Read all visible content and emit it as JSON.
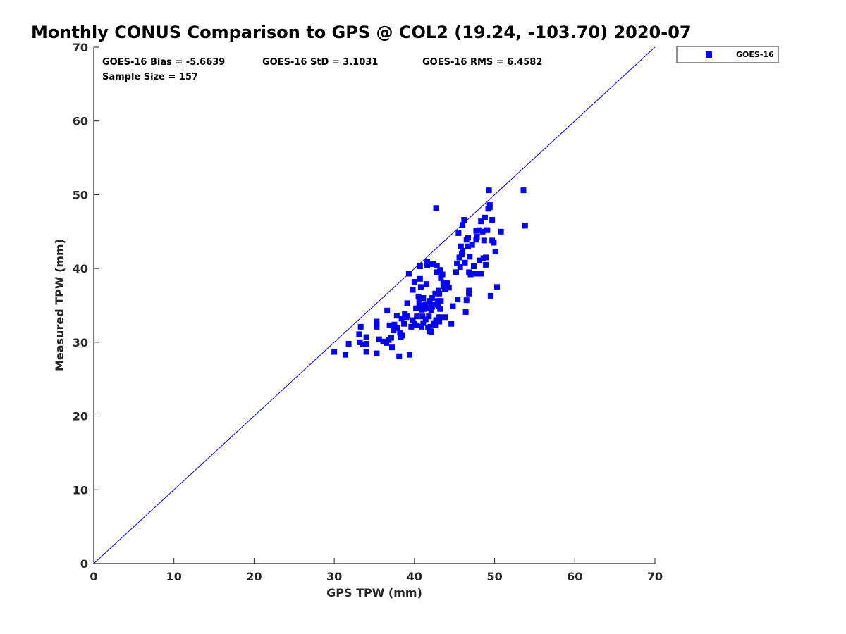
{
  "chart_data": {
    "type": "scatter",
    "title": "Monthly CONUS Comparison to GPS @ COL2 (19.24, -103.70) 2020-07",
    "xlabel": "GPS TPW (mm)",
    "ylabel": "Measured TPW (mm)",
    "xlim": [
      0,
      70
    ],
    "ylim": [
      0,
      70
    ],
    "xticks": [
      "0",
      "10",
      "20",
      "30",
      "40",
      "50",
      "60",
      "70"
    ],
    "yticks": [
      "0",
      "10",
      "20",
      "30",
      "40",
      "50",
      "60",
      "70"
    ],
    "grid": false,
    "legend_position": "outside top-right",
    "marker_color": "#0000ee",
    "reference_line": {
      "x": [
        0,
        70
      ],
      "y": [
        0,
        70
      ],
      "color": "#0000ee"
    },
    "stats": {
      "bias": "GOES-16 Bias = -5.6639",
      "std": "GOES-16 StD = 3.1031",
      "rms": "GOES-16 RMS = 6.4582",
      "sample": "Sample Size = 157"
    },
    "series": [
      {
        "name": "GOES-16",
        "points": [
          [
            30.0,
            28.7
          ],
          [
            31.4,
            28.3
          ],
          [
            31.8,
            29.8
          ],
          [
            33.1,
            31.1
          ],
          [
            33.3,
            32.1
          ],
          [
            33.2,
            30.0
          ],
          [
            33.6,
            29.7
          ],
          [
            34.0,
            30.7
          ],
          [
            34.0,
            29.8
          ],
          [
            34.0,
            28.7
          ],
          [
            35.3,
            32.8
          ],
          [
            35.3,
            32.1
          ],
          [
            35.3,
            28.5
          ],
          [
            35.6,
            30.4
          ],
          [
            36.1,
            30.1
          ],
          [
            36.6,
            34.3
          ],
          [
            36.5,
            29.9
          ],
          [
            36.8,
            30.3
          ],
          [
            36.9,
            32.3
          ],
          [
            37.1,
            30.6
          ],
          [
            37.2,
            29.3
          ],
          [
            37.5,
            32.4
          ],
          [
            37.6,
            31.9
          ],
          [
            37.8,
            33.6
          ],
          [
            37.9,
            32.0
          ],
          [
            38.2,
            31.3
          ],
          [
            38.3,
            30.7
          ],
          [
            38.1,
            28.1
          ],
          [
            38.4,
            33.2
          ],
          [
            38.5,
            30.9
          ],
          [
            38.7,
            32.5
          ],
          [
            39.0,
            33.4
          ],
          [
            39.1,
            33.6
          ],
          [
            39.1,
            35.3
          ],
          [
            39.3,
            39.3
          ],
          [
            39.4,
            28.3
          ],
          [
            39.6,
            32.1
          ],
          [
            39.8,
            33.0
          ],
          [
            39.8,
            37.1
          ],
          [
            40.0,
            32.5
          ],
          [
            40.0,
            38.2
          ],
          [
            40.2,
            34.6
          ],
          [
            40.3,
            32.3
          ],
          [
            40.3,
            33.5
          ],
          [
            40.5,
            36.2
          ],
          [
            40.6,
            34.8
          ],
          [
            40.7,
            38.6
          ],
          [
            40.7,
            40.3
          ],
          [
            40.8,
            37.5
          ],
          [
            40.9,
            34.4
          ],
          [
            40.9,
            32.1
          ],
          [
            41.1,
            32.6
          ],
          [
            41.0,
            33.5
          ],
          [
            41.1,
            36.0
          ],
          [
            41.2,
            34.5
          ],
          [
            41.3,
            35.0
          ],
          [
            41.4,
            33.1
          ],
          [
            41.5,
            37.9
          ],
          [
            41.6,
            40.4
          ],
          [
            41.6,
            40.9
          ],
          [
            41.7,
            34.6
          ],
          [
            41.7,
            32.0
          ],
          [
            41.8,
            33.5
          ],
          [
            41.9,
            31.5
          ],
          [
            41.9,
            35.6
          ],
          [
            42.0,
            32.1
          ],
          [
            42.1,
            31.4
          ],
          [
            42.1,
            34.3
          ],
          [
            42.2,
            36.0
          ],
          [
            42.3,
            40.6
          ],
          [
            42.4,
            32.6
          ],
          [
            42.5,
            35.1
          ],
          [
            42.6,
            32.3
          ],
          [
            42.6,
            36.6
          ],
          [
            42.7,
            48.2
          ],
          [
            42.7,
            33.0
          ],
          [
            42.8,
            40.4
          ],
          [
            42.8,
            39.5
          ],
          [
            42.9,
            35.6
          ],
          [
            43.0,
            37.0
          ],
          [
            43.0,
            34.9
          ],
          [
            43.1,
            33.4
          ],
          [
            43.1,
            32.8
          ],
          [
            43.1,
            36.6
          ],
          [
            43.2,
            34.5
          ],
          [
            43.2,
            39.8
          ],
          [
            43.3,
            38.7
          ],
          [
            43.3,
            35.6
          ],
          [
            43.5,
            39.2
          ],
          [
            43.6,
            38.0
          ],
          [
            43.7,
            37.6
          ],
          [
            43.8,
            37.2
          ],
          [
            43.8,
            33.4
          ],
          [
            44.0,
            37.6
          ],
          [
            44.1,
            38.0
          ],
          [
            44.6,
            32.5
          ],
          [
            44.8,
            34.9
          ],
          [
            45.2,
            39.5
          ],
          [
            45.3,
            40.7
          ],
          [
            45.4,
            35.8
          ],
          [
            45.5,
            44.8
          ],
          [
            45.6,
            41.5
          ],
          [
            45.7,
            40.2
          ],
          [
            45.8,
            43.0
          ],
          [
            45.9,
            41.9
          ],
          [
            46.0,
            42.4
          ],
          [
            46.0,
            45.9
          ],
          [
            46.2,
            46.6
          ],
          [
            46.3,
            40.8
          ],
          [
            46.4,
            34.1
          ],
          [
            46.5,
            43.9
          ],
          [
            46.5,
            35.7
          ],
          [
            46.7,
            43.0
          ],
          [
            46.7,
            44.2
          ],
          [
            46.8,
            39.5
          ],
          [
            46.8,
            37.0
          ],
          [
            46.8,
            36.6
          ],
          [
            46.9,
            41.6
          ],
          [
            47.0,
            39.2
          ],
          [
            47.2,
            43.2
          ],
          [
            47.4,
            40.3
          ],
          [
            47.5,
            39.3
          ],
          [
            47.7,
            43.9
          ],
          [
            47.7,
            45.1
          ],
          [
            47.8,
            44.3
          ],
          [
            47.9,
            39.3
          ],
          [
            48.1,
            41.1
          ],
          [
            48.1,
            45.2
          ],
          [
            48.3,
            39.3
          ],
          [
            48.3,
            46.4
          ],
          [
            48.5,
            45.0
          ],
          [
            48.6,
            41.4
          ],
          [
            48.7,
            43.8
          ],
          [
            48.8,
            46.9
          ],
          [
            48.9,
            41.5
          ],
          [
            48.9,
            40.5
          ],
          [
            49.0,
            45.2
          ],
          [
            49.1,
            45.2
          ],
          [
            49.2,
            48.1
          ],
          [
            49.3,
            50.6
          ],
          [
            49.4,
            48.3
          ],
          [
            49.4,
            48.6
          ],
          [
            49.5,
            36.3
          ],
          [
            49.7,
            46.6
          ],
          [
            49.7,
            43.8
          ],
          [
            49.9,
            43.5
          ],
          [
            50.1,
            42.3
          ],
          [
            50.3,
            37.5
          ],
          [
            50.8,
            45.0
          ],
          [
            53.6,
            50.6
          ],
          [
            53.8,
            45.8
          ],
          [
            41.4,
            35.2
          ],
          [
            40.6,
            35.5
          ],
          [
            42.2,
            34.8
          ],
          [
            37.4,
            31.6
          ],
          [
            38.8,
            33.9
          ],
          [
            44.3,
            37.4
          ]
        ]
      }
    ]
  }
}
